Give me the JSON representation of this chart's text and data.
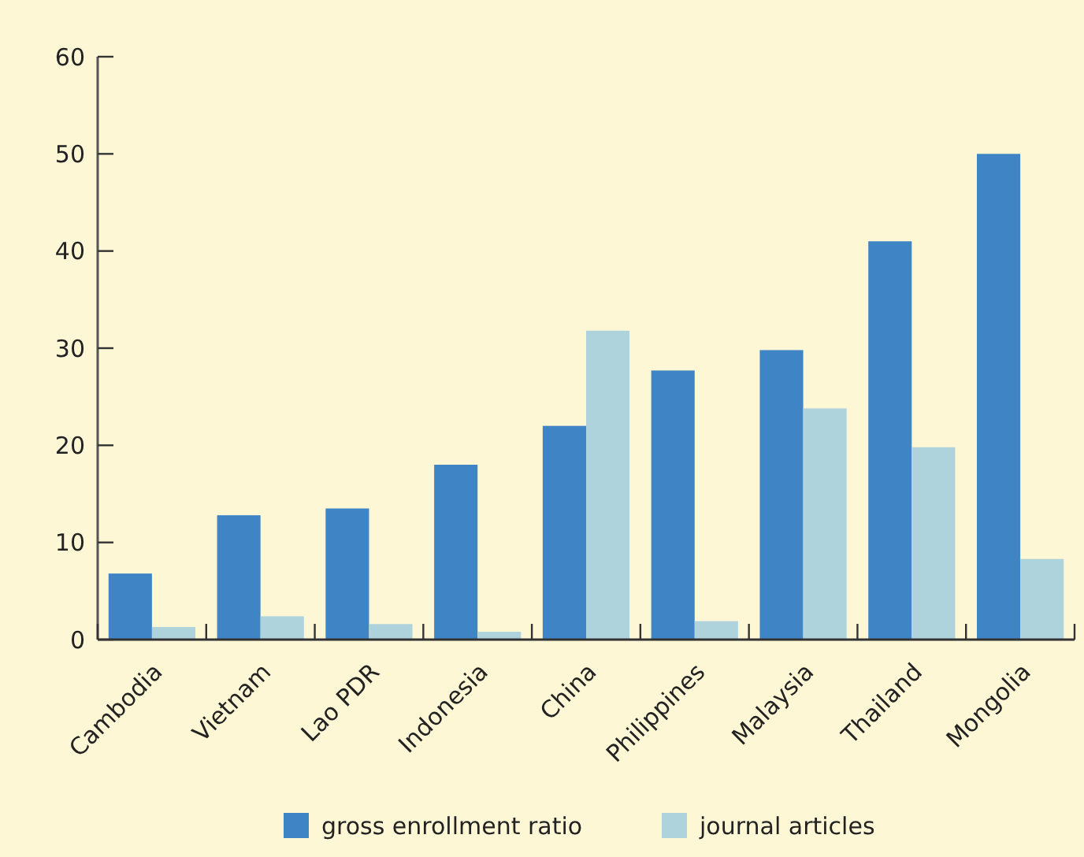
{
  "chart_data": {
    "type": "bar",
    "categories": [
      "Cambodia",
      "Vietnam",
      "Lao PDR",
      "Indonesia",
      "China",
      "Philippines",
      "Malaysia",
      "Thailand",
      "Mongolia"
    ],
    "series": [
      {
        "name": "gross enrollment ratio",
        "color": "#3f84c5",
        "values": [
          6.8,
          12.8,
          13.5,
          18,
          22,
          27.7,
          29.8,
          41,
          50
        ]
      },
      {
        "name": "journal articles",
        "color": "#aed3dc",
        "values": [
          1.3,
          2.4,
          1.6,
          0.8,
          31.8,
          1.9,
          23.8,
          19.8,
          8.3
        ]
      }
    ],
    "ylim": [
      0,
      60
    ],
    "yticks": [
      0,
      10,
      20,
      30,
      40,
      50,
      60
    ],
    "grid": false,
    "legend": "bottom"
  }
}
